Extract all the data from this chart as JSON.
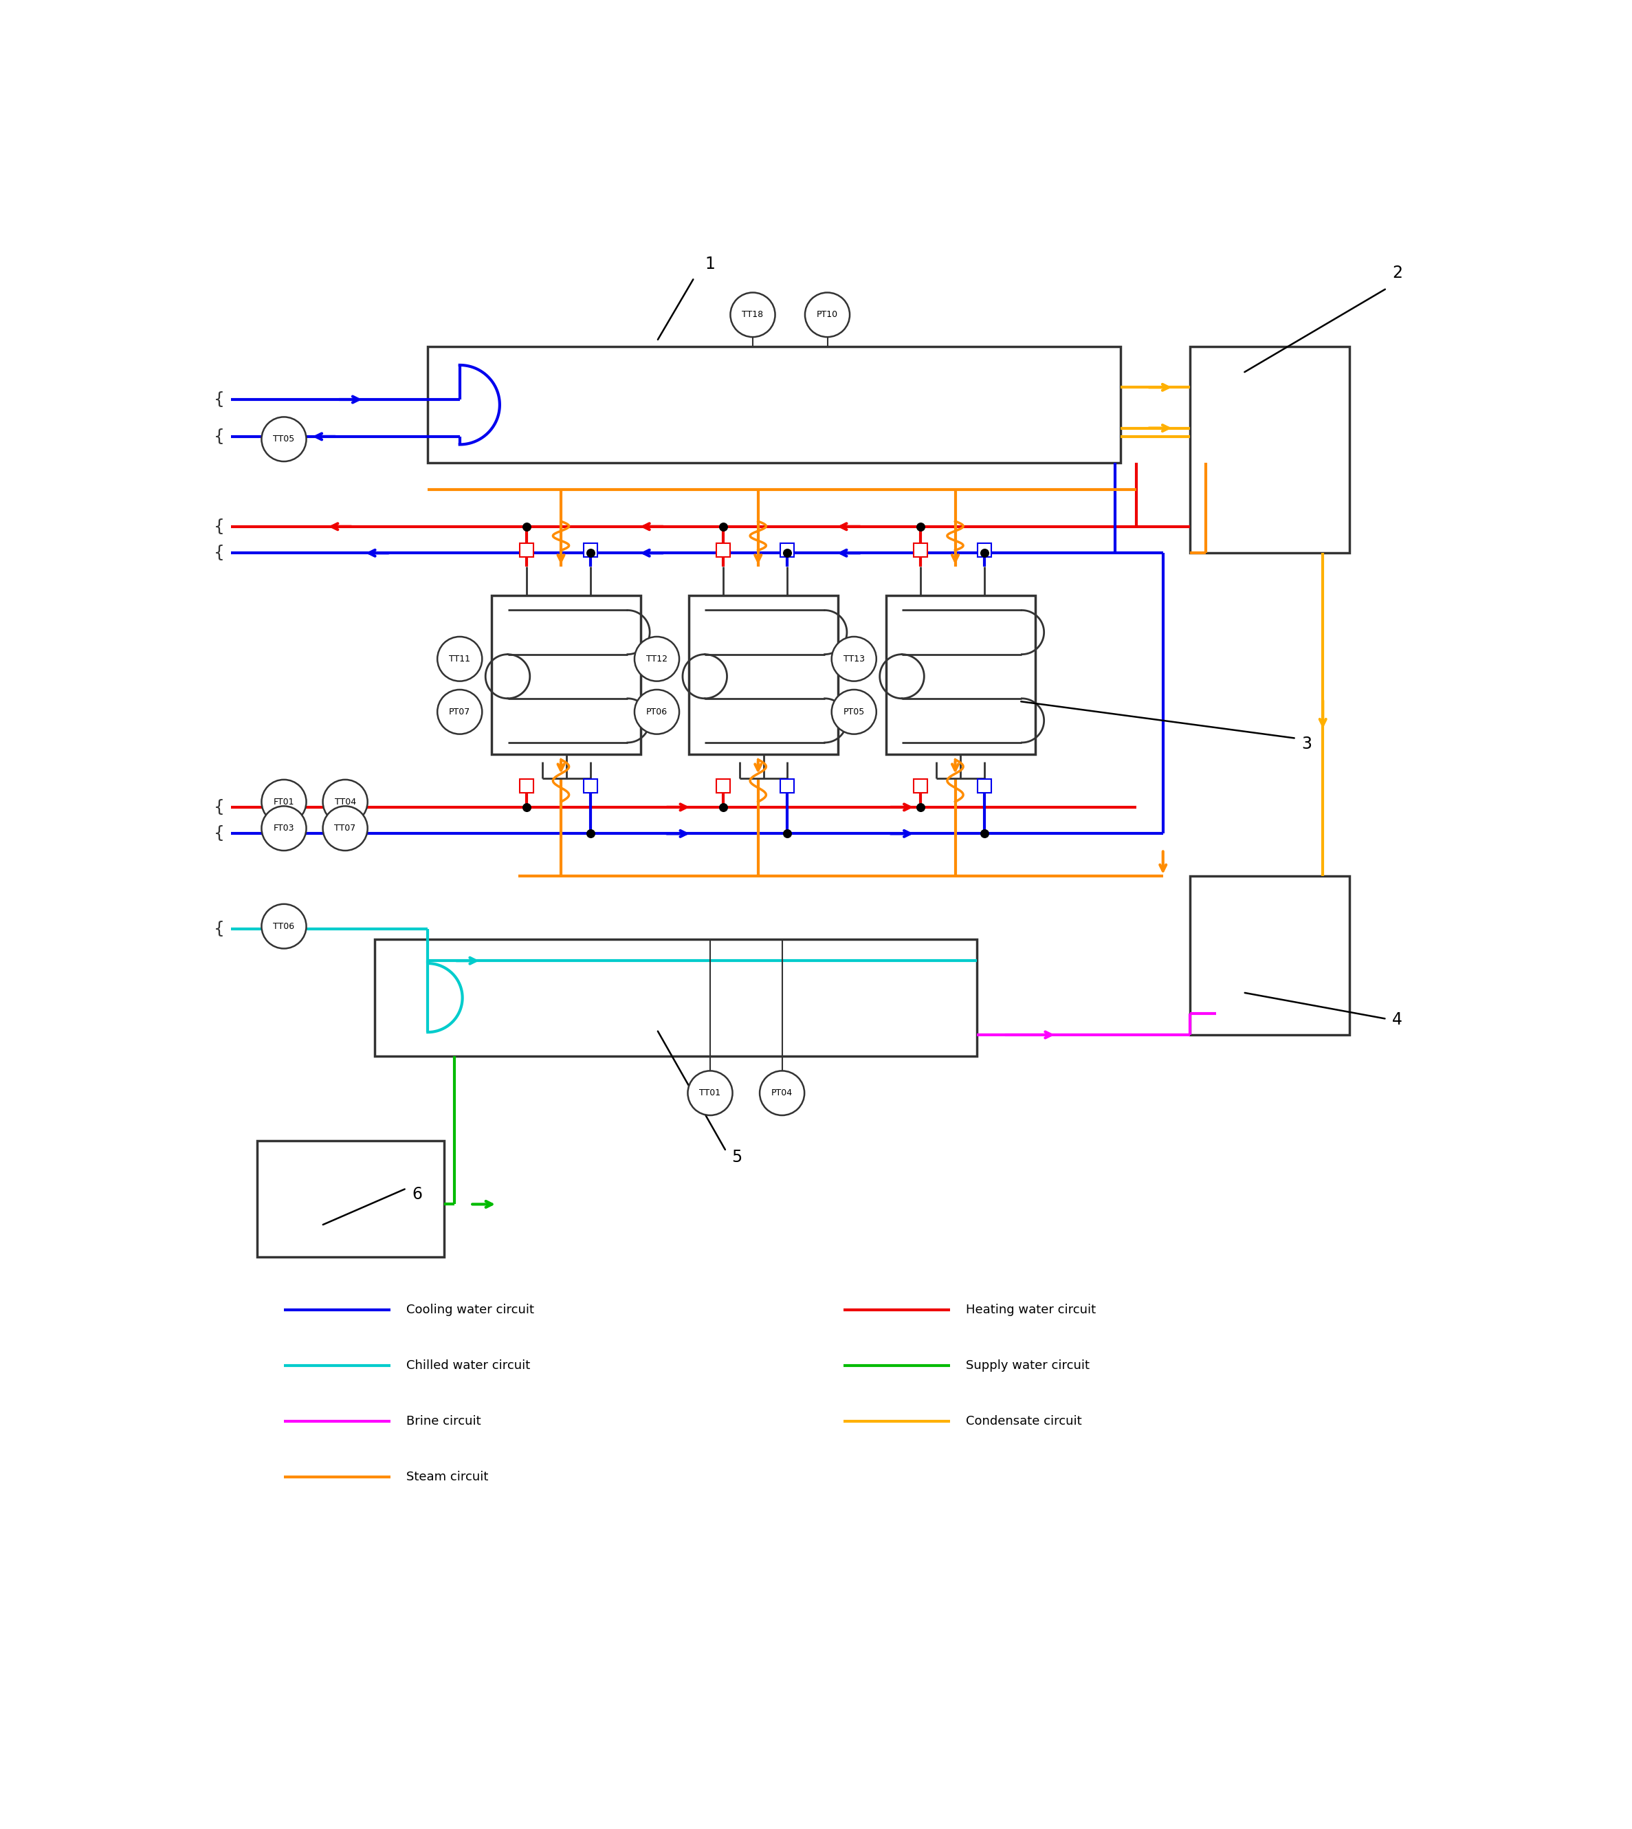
{
  "colors": {
    "blue": "#0000EE",
    "red": "#EE0000",
    "cyan": "#00CCCC",
    "green": "#00BB00",
    "magenta": "#FF00FF",
    "orange": "#FF8C00",
    "gold": "#FFB000",
    "black": "#000000",
    "edge": "#333333"
  },
  "legend_left": [
    {
      "label": "Cooling water circuit",
      "color": "#0000EE"
    },
    {
      "label": "Chilled water circuit",
      "color": "#00CCCC"
    },
    {
      "label": "Brine circuit",
      "color": "#FF00FF"
    },
    {
      "label": "Steam circuit",
      "color": "#FF8C00"
    }
  ],
  "legend_right": [
    {
      "label": "Heating water circuit",
      "color": "#EE0000"
    },
    {
      "label": "Supply water circuit",
      "color": "#00BB00"
    },
    {
      "label": "Condensate circuit",
      "color": "#FFB000"
    }
  ]
}
